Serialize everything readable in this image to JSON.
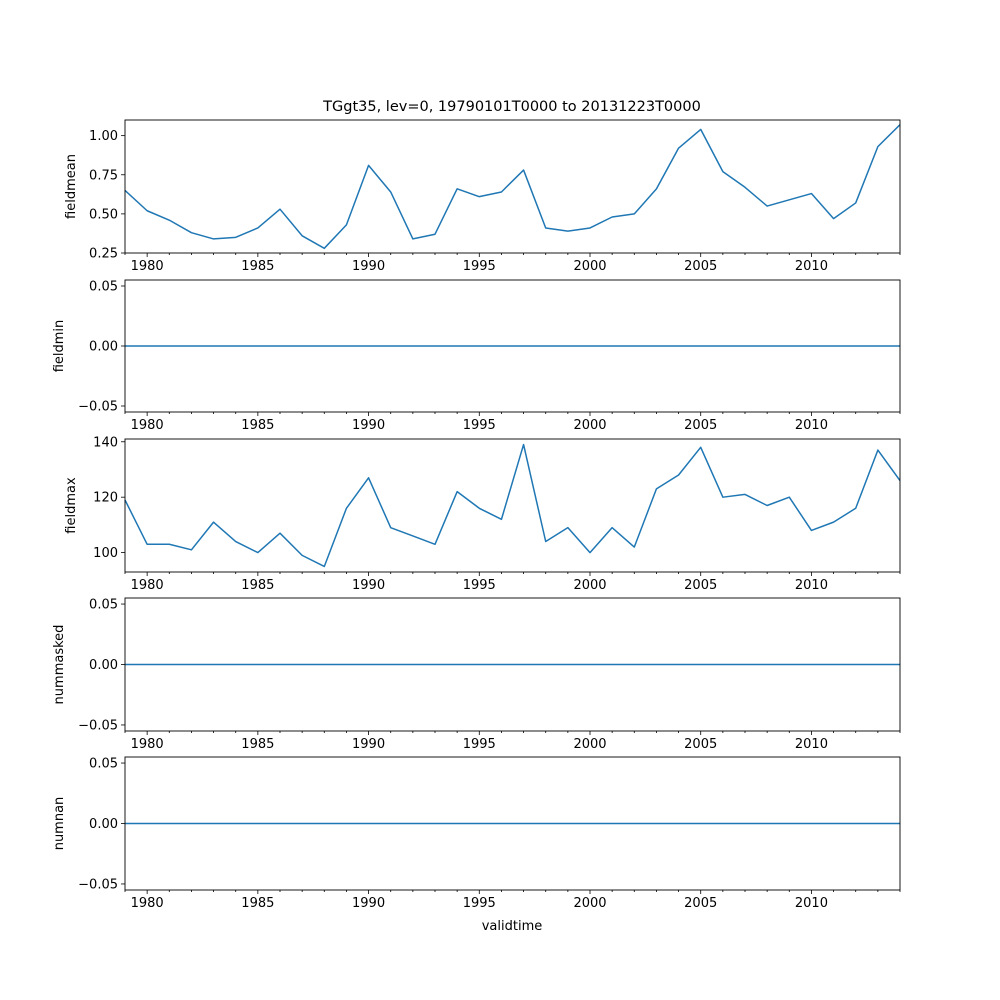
{
  "figure": {
    "title": "TGgt35, lev=0, 19790101T0000 to 20131223T0000",
    "xlabel": "validtime"
  },
  "chart_data": [
    {
      "type": "line",
      "ylabel": "fieldmean",
      "xlim": [
        1979,
        2014
      ],
      "ylim": [
        0.25,
        1.1
      ],
      "x_ticks": [
        "1980",
        "1985",
        "1990",
        "1995",
        "2000",
        "2005",
        "2010"
      ],
      "y_ticks": [
        "0.25",
        "0.50",
        "0.75",
        "1.00"
      ],
      "series": [
        {
          "color": "#1f77b4",
          "x": [
            1979,
            1980,
            1981,
            1982,
            1983,
            1984,
            1985,
            1986,
            1987,
            1988,
            1989,
            1990,
            1991,
            1992,
            1993,
            1994,
            1995,
            1996,
            1997,
            1998,
            1999,
            2000,
            2001,
            2002,
            2003,
            2004,
            2005,
            2006,
            2007,
            2008,
            2009,
            2010,
            2011,
            2012,
            2013,
            2014
          ],
          "values": [
            0.65,
            0.52,
            0.46,
            0.38,
            0.34,
            0.35,
            0.41,
            0.53,
            0.36,
            0.28,
            0.43,
            0.81,
            0.64,
            0.34,
            0.37,
            0.66,
            0.61,
            0.64,
            0.78,
            0.41,
            0.39,
            0.41,
            0.48,
            0.5,
            0.66,
            0.92,
            1.04,
            0.77,
            0.67,
            0.55,
            0.59,
            0.63,
            0.47,
            0.57,
            0.93,
            1.07
          ]
        }
      ]
    },
    {
      "type": "line",
      "ylabel": "fieldmin",
      "xlim": [
        1979,
        2014
      ],
      "ylim": [
        -0.055,
        0.055
      ],
      "x_ticks": [
        "1980",
        "1985",
        "1990",
        "1995",
        "2000",
        "2005",
        "2010"
      ],
      "y_ticks": [
        "−0.05",
        "0.00",
        "0.05"
      ],
      "series": [
        {
          "color": "#1f77b4",
          "x": [
            1979,
            2014
          ],
          "values": [
            0,
            0
          ]
        }
      ]
    },
    {
      "type": "line",
      "ylabel": "fieldmax",
      "xlim": [
        1979,
        2014
      ],
      "ylim": [
        93,
        141
      ],
      "x_ticks": [
        "1980",
        "1985",
        "1990",
        "1995",
        "2000",
        "2005",
        "2010"
      ],
      "y_ticks": [
        "100",
        "120",
        "140"
      ],
      "series": [
        {
          "color": "#1f77b4",
          "x": [
            1979,
            1980,
            1981,
            1982,
            1983,
            1984,
            1985,
            1986,
            1987,
            1988,
            1989,
            1990,
            1991,
            1992,
            1993,
            1994,
            1995,
            1996,
            1997,
            1998,
            1999,
            2000,
            2001,
            2002,
            2003,
            2004,
            2005,
            2006,
            2007,
            2008,
            2009,
            2010,
            2011,
            2012,
            2013,
            2014
          ],
          "values": [
            119,
            103,
            103,
            101,
            111,
            104,
            100,
            107,
            99,
            95,
            116,
            127,
            109,
            106,
            103,
            122,
            116,
            112,
            139,
            104,
            109,
            100,
            109,
            102,
            123,
            128,
            138,
            120,
            121,
            117,
            120,
            108,
            111,
            116,
            137,
            126
          ]
        }
      ]
    },
    {
      "type": "line",
      "ylabel": "nummasked",
      "xlim": [
        1979,
        2014
      ],
      "ylim": [
        -0.055,
        0.055
      ],
      "x_ticks": [
        "1980",
        "1985",
        "1990",
        "1995",
        "2000",
        "2005",
        "2010"
      ],
      "y_ticks": [
        "−0.05",
        "0.00",
        "0.05"
      ],
      "series": [
        {
          "color": "#1f77b4",
          "x": [
            1979,
            2014
          ],
          "values": [
            0,
            0
          ]
        }
      ]
    },
    {
      "type": "line",
      "ylabel": "numnan",
      "xlim": [
        1979,
        2014
      ],
      "ylim": [
        -0.055,
        0.055
      ],
      "x_ticks": [
        "1980",
        "1985",
        "1990",
        "1995",
        "2000",
        "2005",
        "2010"
      ],
      "y_ticks": [
        "−0.05",
        "0.00",
        "0.05"
      ],
      "series": [
        {
          "color": "#1f77b4",
          "x": [
            1979,
            2014
          ],
          "values": [
            0,
            0
          ]
        }
      ]
    }
  ]
}
